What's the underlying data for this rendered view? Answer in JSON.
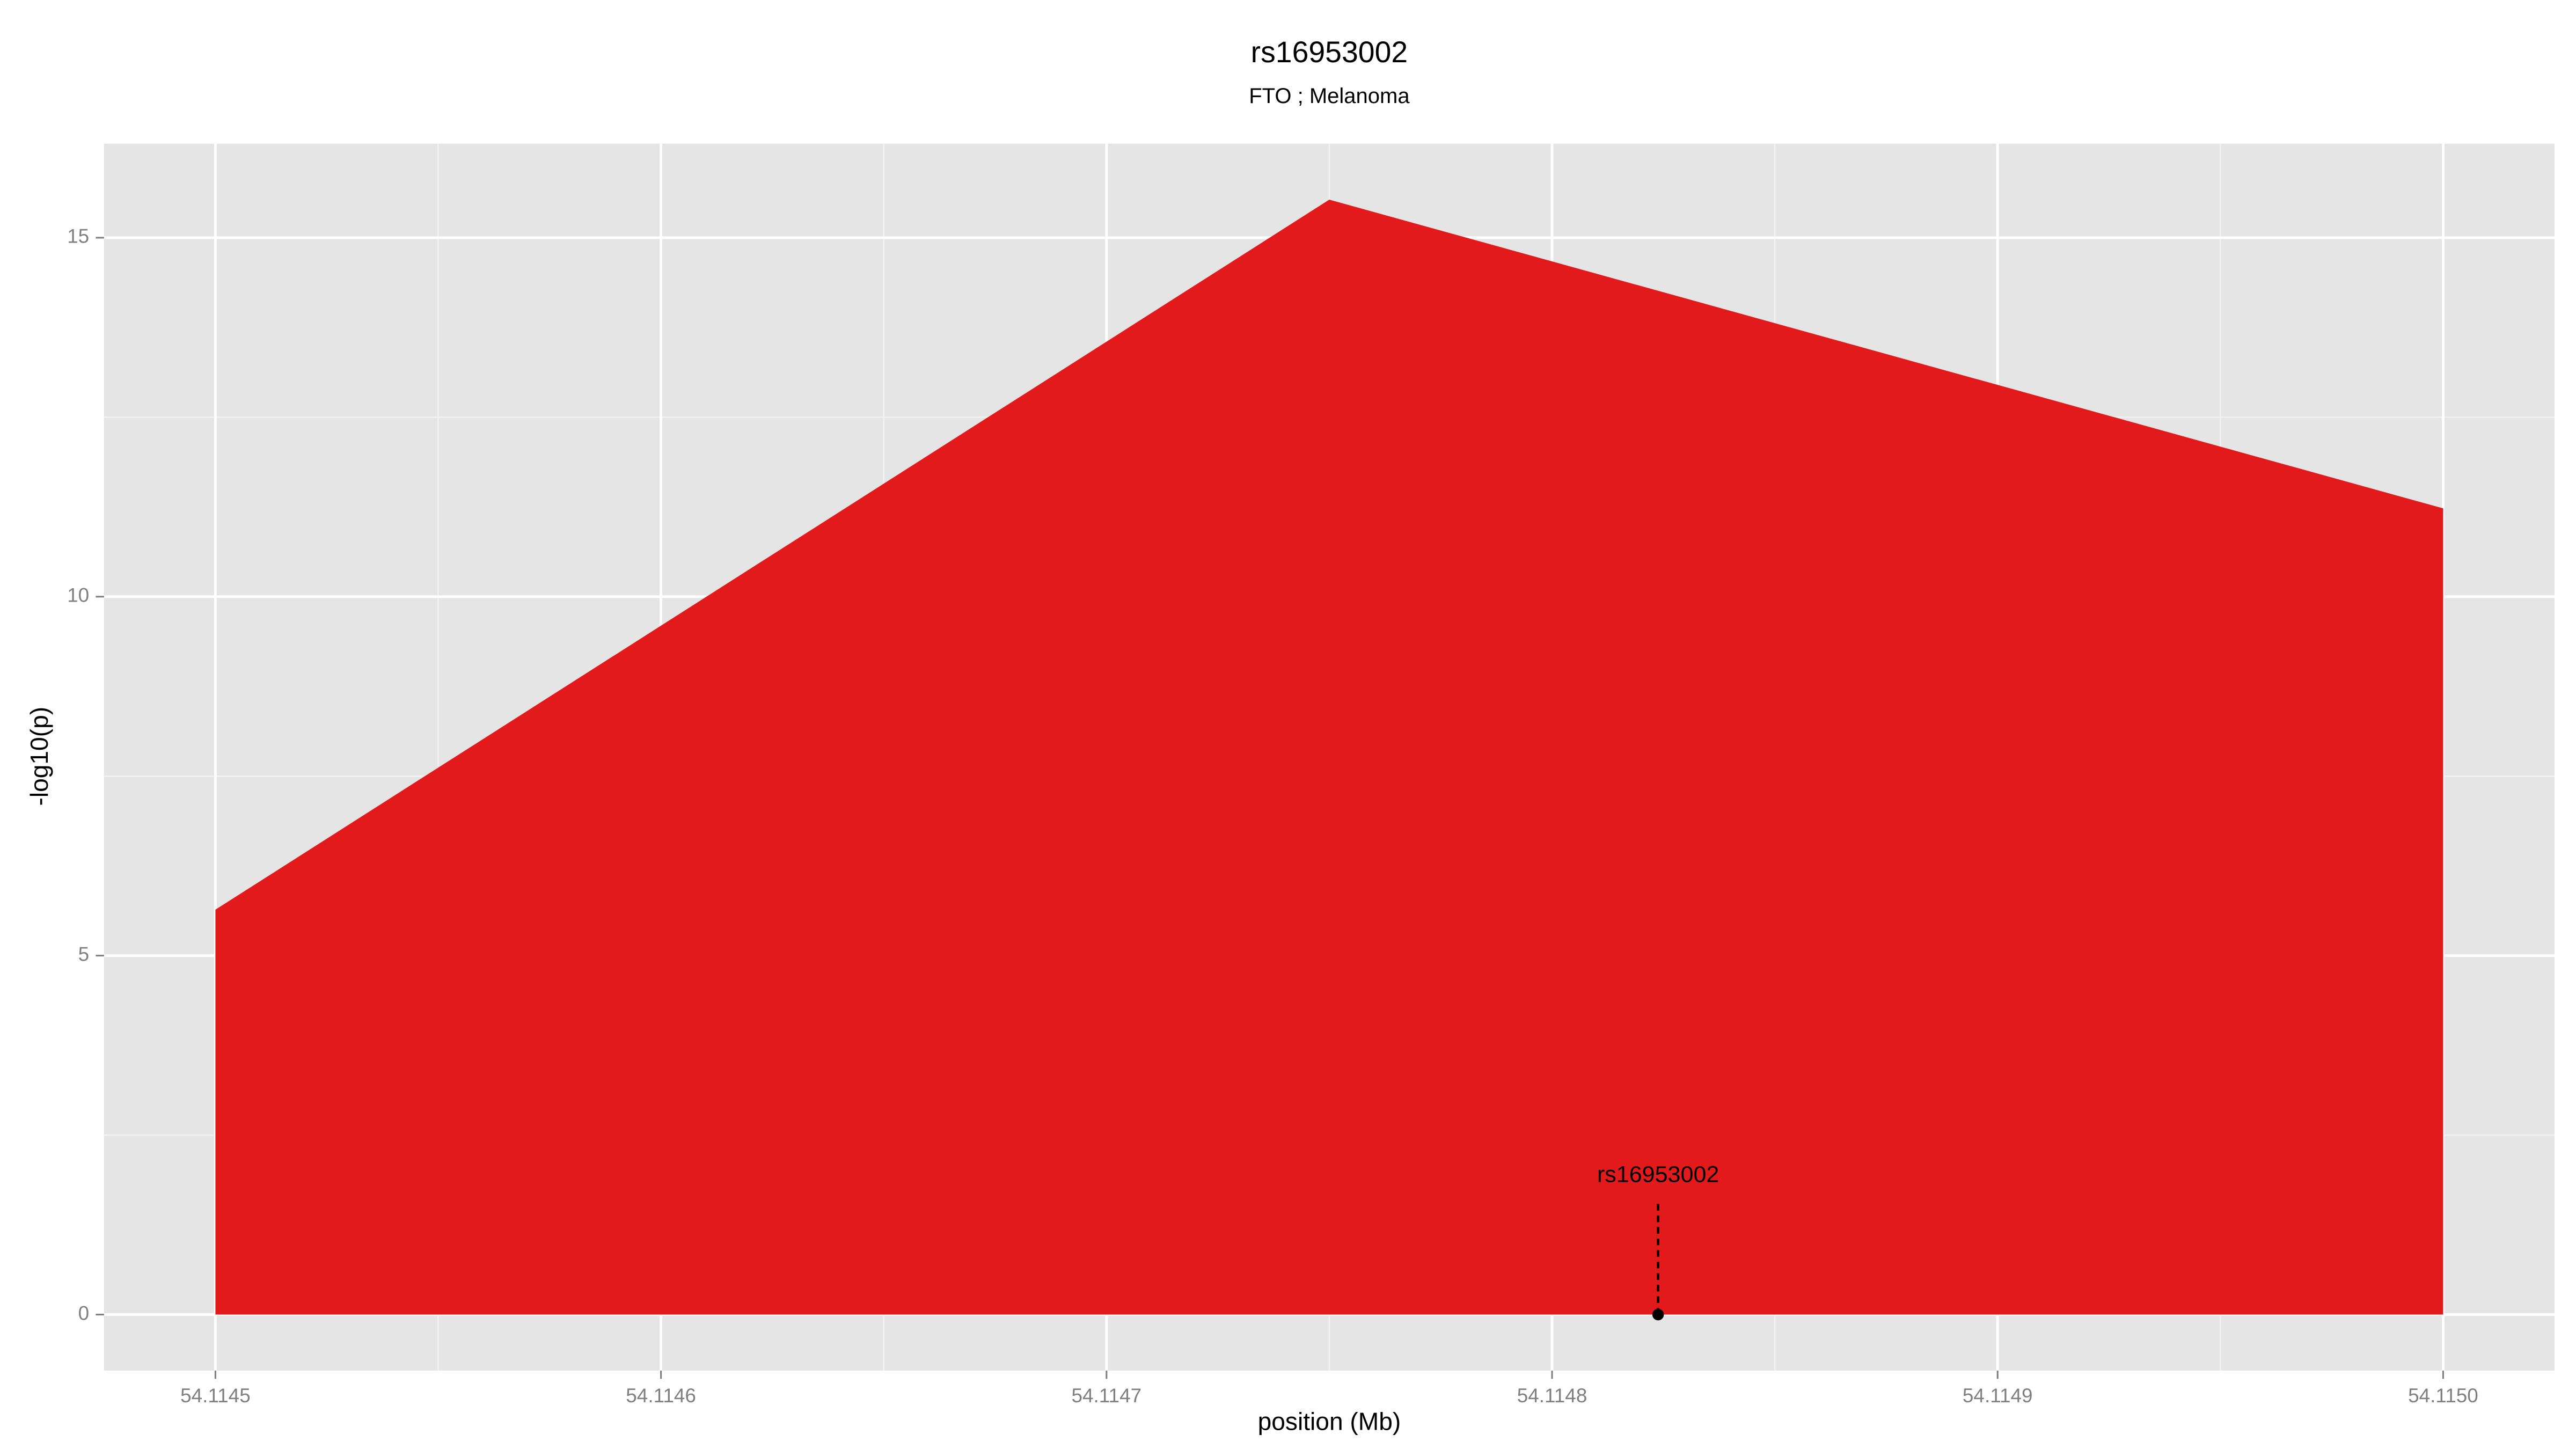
{
  "chart_data": {
    "type": "area",
    "title": "rs16953002",
    "subtitle": "FTO ; Melanoma",
    "xlabel": "position (Mb)",
    "ylabel": "-log10(p)",
    "x": [
      54.1145,
      54.11475,
      54.115
    ],
    "values": [
      5.64,
      15.53,
      11.23
    ],
    "color": "#e31a1c",
    "xlim": [
      54.114475,
      54.115025
    ],
    "ylim": [
      -0.78,
      16.31
    ],
    "xticks": [
      54.1145,
      54.1146,
      54.1147,
      54.1148,
      54.1149,
      {
        "value": 54.115,
        "label": "54.1150"
      }
    ],
    "yticks": [
      0,
      5,
      10,
      15
    ],
    "grid": true,
    "annotation": {
      "label": "rs16953002",
      "x": 54.1148238,
      "y": 0
    }
  }
}
